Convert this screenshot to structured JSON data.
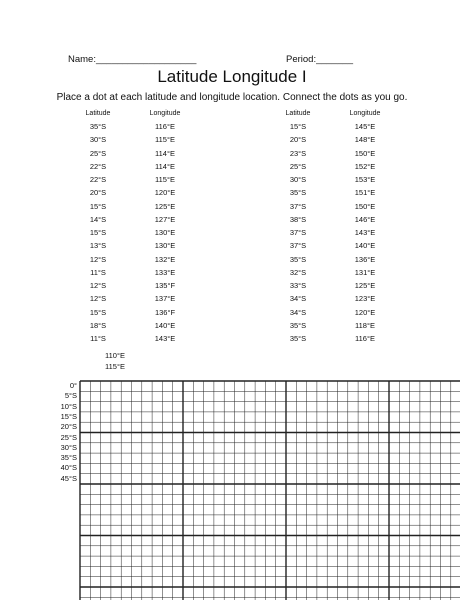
{
  "header": {
    "name_label": "Name:___________________",
    "period_label": "Period:_______"
  },
  "title": "Latitude Longitude I",
  "instructions": "Place a dot at each latitude and longitude location. Connect the dots as you go.",
  "table": {
    "columns": [
      "Latitude",
      "Longitude",
      "Latitude",
      "Longitude"
    ],
    "left_rows": [
      [
        "35°S",
        "116°E"
      ],
      [
        "30°S",
        "115°E"
      ],
      [
        "25°S",
        "114°E"
      ],
      [
        "22°S",
        "114°E"
      ],
      [
        "22°S",
        "115°E"
      ],
      [
        "20°S",
        "120°E"
      ],
      [
        "15°S",
        "125°E"
      ],
      [
        "14°S",
        "127°E"
      ],
      [
        "15°S",
        "130°E"
      ],
      [
        "13°S",
        "130°E"
      ],
      [
        "12°S",
        "132°E"
      ],
      [
        "11°S",
        "133°E"
      ],
      [
        "12°S",
        "135°F"
      ],
      [
        "12°S",
        "137°E"
      ],
      [
        "15°S",
        "136°F"
      ],
      [
        "18°S",
        "140°E"
      ],
      [
        "11°S",
        "143°E"
      ]
    ],
    "right_rows": [
      [
        "15°S",
        "145°E"
      ],
      [
        "20°S",
        "148°E"
      ],
      [
        "23°S",
        "150°E"
      ],
      [
        "25°S",
        "152°E"
      ],
      [
        "30°S",
        "153°E"
      ],
      [
        "35°S",
        "151°E"
      ],
      [
        "37°S",
        "150°E"
      ],
      [
        "38°S",
        "146°E"
      ],
      [
        "37°S",
        "143°E"
      ],
      [
        "37°S",
        "140°E"
      ],
      [
        "35°S",
        "136°E"
      ],
      [
        "32°S",
        "131°E"
      ],
      [
        "33°S",
        "125°E"
      ],
      [
        "34°S",
        "123°E"
      ],
      [
        "34°S",
        "120°E"
      ],
      [
        "35°S",
        "118°E"
      ],
      [
        "35°S",
        "116°E"
      ]
    ]
  },
  "grid": {
    "longitude_labels": [
      "110°E",
      "115°E"
    ],
    "latitude_labels": [
      "0°",
      "5°S",
      "10°S",
      "15°S",
      "20°S",
      "25°S",
      "30°S",
      "35°S",
      "40°S",
      "45°S"
    ]
  }
}
